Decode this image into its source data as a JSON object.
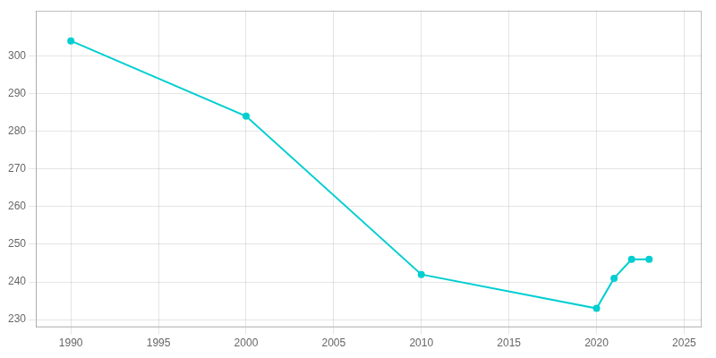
{
  "chart_data": {
    "type": "line",
    "x": [
      1990,
      2000,
      2010,
      2020,
      2021,
      2022,
      2023
    ],
    "values": [
      304,
      284,
      242,
      233,
      241,
      246,
      246
    ],
    "color": "#00CED1",
    "marker": "circle",
    "xlim": [
      1988,
      2026
    ],
    "ylim": [
      228,
      312
    ],
    "xticks": [
      1990,
      1995,
      2000,
      2005,
      2010,
      2015,
      2020,
      2025
    ],
    "yticks": [
      230,
      240,
      250,
      260,
      270,
      280,
      290,
      300
    ],
    "grid": true
  }
}
